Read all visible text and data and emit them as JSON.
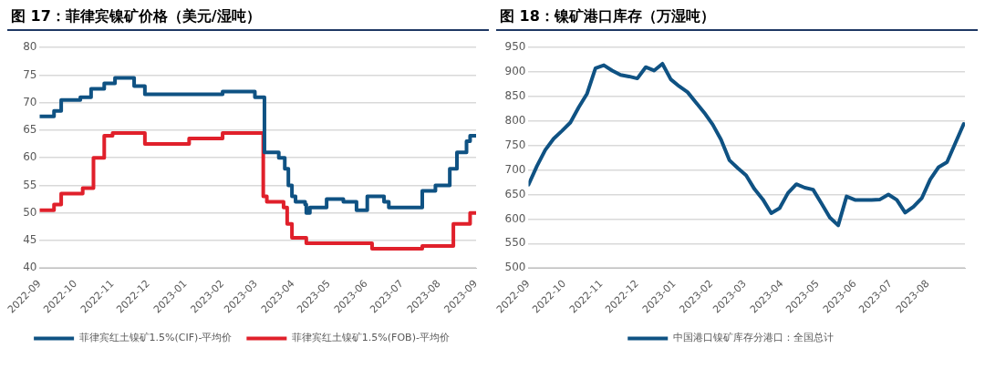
{
  "chart_data": [
    {
      "type": "step",
      "title": "图 17：菲律宾镍矿价格（美元/湿吨）",
      "xlim": [
        "2022-09-01",
        "2023-09-01"
      ],
      "xticks": [
        "2022-09",
        "2022-10",
        "2022-11",
        "2022-12",
        "2023-01",
        "2023-02",
        "2023-03",
        "2023-04",
        "2023-05",
        "2023-06",
        "2023-07",
        "2023-08",
        "2023-09"
      ],
      "ylim": [
        40,
        80
      ],
      "yticks": [
        40,
        45,
        50,
        55,
        60,
        65,
        70,
        75,
        80
      ],
      "grid": "y",
      "legend": "bottom",
      "marker": "none",
      "line_style": "solid",
      "series": [
        {
          "name": "菲律宾红土镍矿1.5%(CIF)-平均价",
          "color": "#0f5283",
          "x": [
            "2022-09-01",
            "2022-09-13",
            "2022-09-19",
            "2022-10-05",
            "2022-10-14",
            "2022-10-25",
            "2022-11-03",
            "2022-11-19",
            "2022-11-28",
            "2023-02-01",
            "2023-02-28",
            "2023-03-08",
            "2023-03-20",
            "2023-03-25",
            "2023-03-28",
            "2023-03-31",
            "2023-04-03",
            "2023-04-11",
            "2023-04-12",
            "2023-04-15",
            "2023-04-29",
            "2023-05-13",
            "2023-05-24",
            "2023-06-02",
            "2023-06-16",
            "2023-06-20",
            "2023-07-18",
            "2023-07-29",
            "2023-08-10",
            "2023-08-16",
            "2023-08-24",
            "2023-08-27",
            "2023-09-01"
          ],
          "values": [
            67.5,
            68.5,
            70.5,
            71,
            72.5,
            73.5,
            74.5,
            73,
            71.5,
            72,
            71,
            61,
            60,
            58,
            55,
            53,
            52,
            51.5,
            50,
            51,
            52.5,
            52,
            50.5,
            53,
            52,
            51,
            54,
            55,
            58,
            61,
            63,
            64,
            64
          ]
        },
        {
          "name": "菲律宾红土镍矿1.5%(FOB)-平均价",
          "color": "#e0202b",
          "x": [
            "2022-09-01",
            "2022-09-13",
            "2022-09-19",
            "2022-10-07",
            "2022-10-16",
            "2022-10-25",
            "2022-11-01",
            "2022-11-28",
            "2023-01-04",
            "2023-02-01",
            "2023-03-07",
            "2023-03-10",
            "2023-03-24",
            "2023-03-27",
            "2023-03-31",
            "2023-04-12",
            "2023-06-06",
            "2023-07-18",
            "2023-08-13",
            "2023-08-27",
            "2023-09-01"
          ],
          "values": [
            50.5,
            51.5,
            53.5,
            54.5,
            60,
            64,
            64.5,
            62.5,
            63.5,
            64.5,
            53,
            52,
            51,
            48,
            45.5,
            44.5,
            43.5,
            44,
            48,
            50,
            50
          ]
        }
      ]
    },
    {
      "type": "line",
      "title": "图 18：镍矿港口库存（万湿吨）",
      "xlim": [
        "2022-09-01",
        "2023-09-01"
      ],
      "xticks": [
        "2022-09",
        "2022-10",
        "2022-11",
        "2022-12",
        "2023-01",
        "2023-02",
        "2023-03",
        "2023-04",
        "2023-05",
        "2023-06",
        "2023-07",
        "2023-08"
      ],
      "ylim": [
        500,
        950
      ],
      "yticks": [
        500,
        550,
        600,
        650,
        700,
        750,
        800,
        850,
        900,
        950
      ],
      "grid": "y",
      "legend": "bottom",
      "marker": "none",
      "line_style": "solid",
      "x": [
        "2022-09-01",
        "2022-09-08",
        "2022-09-15",
        "2022-09-22",
        "2022-09-29",
        "2022-10-06",
        "2022-10-13",
        "2022-10-20",
        "2022-10-27",
        "2022-11-03",
        "2022-11-10",
        "2022-11-17",
        "2022-11-24",
        "2022-12-01",
        "2022-12-08",
        "2022-12-15",
        "2022-12-22",
        "2022-12-29",
        "2023-01-05",
        "2023-01-12",
        "2023-01-19",
        "2023-01-26",
        "2023-02-02",
        "2023-02-09",
        "2023-02-16",
        "2023-02-23",
        "2023-03-02",
        "2023-03-09",
        "2023-03-16",
        "2023-03-23",
        "2023-03-30",
        "2023-04-06",
        "2023-04-13",
        "2023-04-20",
        "2023-04-27",
        "2023-05-04",
        "2023-05-11",
        "2023-05-18",
        "2023-05-25",
        "2023-06-01",
        "2023-06-08",
        "2023-06-15",
        "2023-06-22",
        "2023-06-29",
        "2023-07-06",
        "2023-07-13",
        "2023-07-20",
        "2023-07-27",
        "2023-08-03",
        "2023-08-10",
        "2023-08-17",
        "2023-08-24",
        "2023-08-31"
      ],
      "series": [
        {
          "name": "中国港口镍矿库存分港口：全国总计",
          "color": "#0f5283",
          "values": [
            670,
            708,
            741,
            764,
            780,
            797,
            828,
            856,
            908,
            914,
            903,
            894,
            891,
            887,
            910,
            903,
            917,
            885,
            871,
            859,
            838,
            817,
            793,
            762,
            720,
            704,
            689,
            661,
            640,
            612,
            622,
            653,
            671,
            664,
            660,
            632,
            603,
            587,
            646,
            639,
            639,
            639,
            640,
            650,
            639,
            613,
            625,
            643,
            681,
            706,
            716,
            755,
            794
          ]
        }
      ]
    }
  ]
}
